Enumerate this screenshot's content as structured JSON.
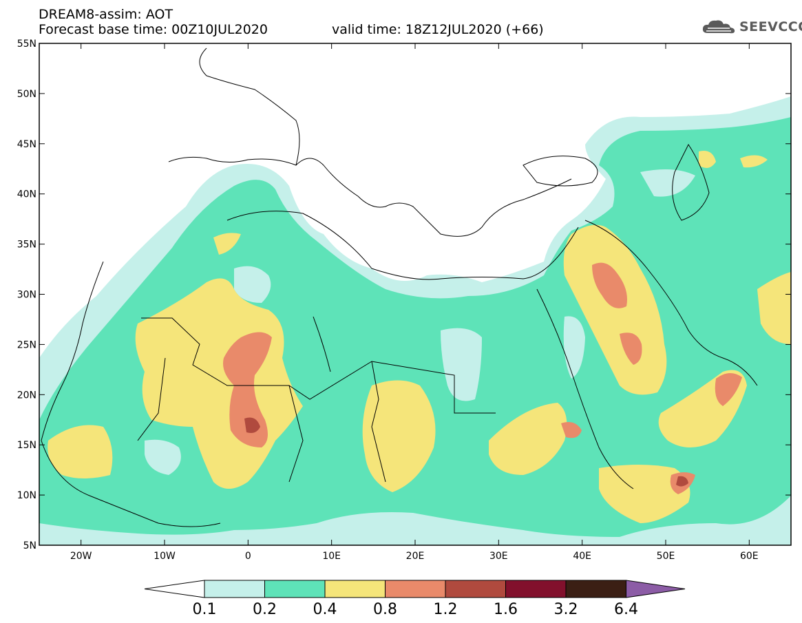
{
  "title": {
    "line1": "DREAM8-assim: AOT",
    "base_time": "Forecast base time: 00Z10JUL2020",
    "valid_time": "valid time: 18Z12JUL2020 (+66)"
  },
  "logo": {
    "text": "SEEVCCC",
    "icon": "cloud-icon"
  },
  "map": {
    "lon_range": [
      -25,
      65
    ],
    "lat_range": [
      5,
      55
    ],
    "lat_ticks": [
      "5N",
      "10N",
      "15N",
      "20N",
      "25N",
      "30N",
      "35N",
      "40N",
      "45N",
      "50N",
      "55N"
    ],
    "lon_ticks": [
      "20W",
      "10W",
      "0",
      "10E",
      "20E",
      "30E",
      "40E",
      "50E",
      "60E"
    ],
    "colorbar": {
      "levels": [
        "0.1",
        "0.2",
        "0.4",
        "0.8",
        "1.2",
        "1.6",
        "3.2",
        "6.4"
      ],
      "colors": [
        "#ffffff",
        "#c5f0ea",
        "#5ee3b8",
        "#f5e57a",
        "#e98a6a",
        "#b04a3e",
        "#82102c",
        "#3b1f14",
        "#8c5ca6"
      ]
    }
  }
}
